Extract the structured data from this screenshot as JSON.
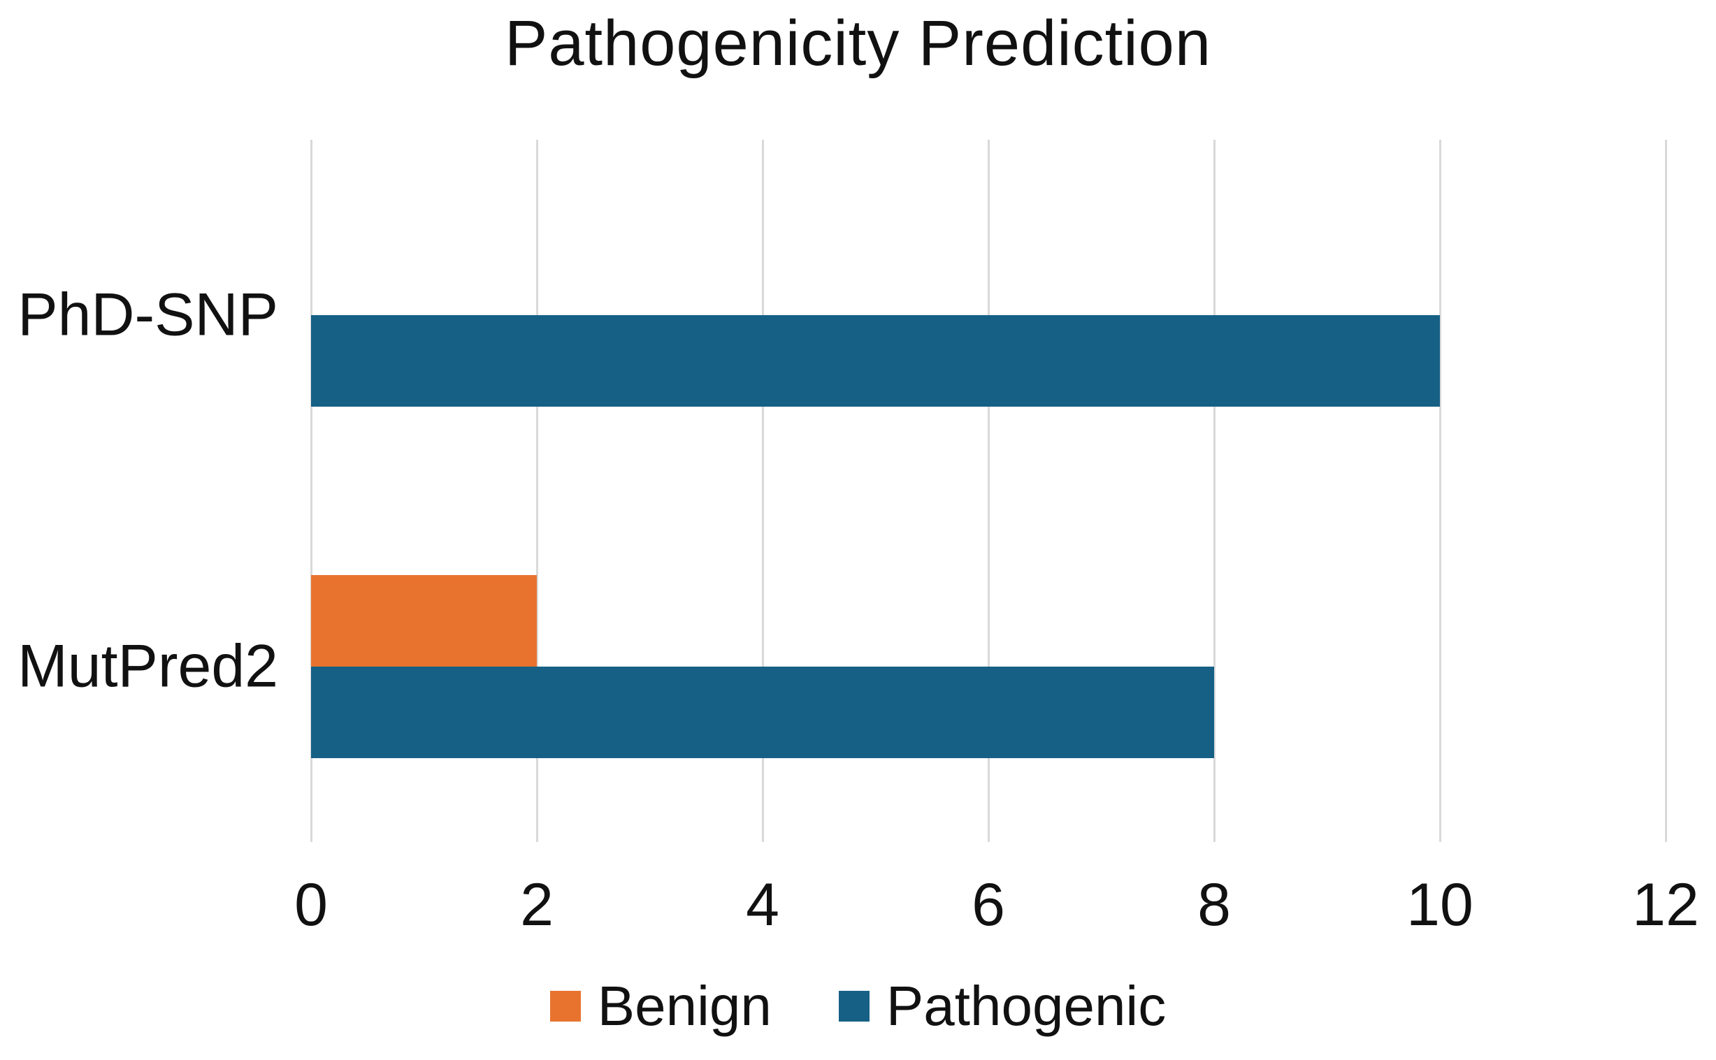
{
  "chart_data": {
    "type": "bar",
    "orientation": "horizontal",
    "title": "Pathogenicity Prediction",
    "categories": [
      "PhD-SNP",
      "MutPred2"
    ],
    "series": [
      {
        "name": "Benign",
        "color": "#E8732F",
        "values": [
          0,
          2
        ]
      },
      {
        "name": "Pathogenic",
        "color": "#166085",
        "values": [
          10,
          8
        ]
      }
    ],
    "xlim": [
      0,
      12
    ],
    "x_ticks": [
      0,
      2,
      4,
      6,
      8,
      10,
      12
    ],
    "grid": "vertical",
    "gridline_color": "#D9D9D9",
    "legend_position": "bottom",
    "legend_entries": [
      "Benign",
      "Pathogenic"
    ],
    "text_color": "#111111",
    "background_color": "#FFFFFF"
  }
}
